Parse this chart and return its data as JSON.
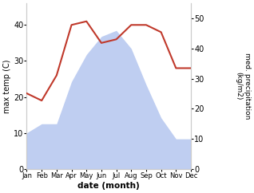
{
  "months": [
    "Jan",
    "Feb",
    "Mar",
    "Apr",
    "May",
    "Jun",
    "Jul",
    "Aug",
    "Sep",
    "Oct",
    "Nov",
    "Dec"
  ],
  "month_x": [
    1,
    2,
    3,
    4,
    5,
    6,
    7,
    8,
    9,
    10,
    11,
    12
  ],
  "precipitation": [
    12,
    15,
    15,
    29,
    38,
    44,
    46,
    40,
    28,
    17,
    10,
    10
  ],
  "temperature": [
    21,
    19,
    26,
    40,
    41,
    35,
    36,
    40,
    40,
    38,
    28,
    28
  ],
  "temp_color": "#c0392b",
  "precip_color": "#b8c9f0",
  "ylabel_left": "max temp (C)",
  "ylabel_right": "med. precipitation\n(kg/m2)",
  "xlabel": "date (month)",
  "ylim_left": [
    0,
    46
  ],
  "ylim_right": [
    0,
    55
  ],
  "yticks_left": [
    0,
    10,
    20,
    30,
    40
  ],
  "yticks_right": [
    0,
    10,
    20,
    30,
    40,
    50
  ],
  "background_color": "#ffffff"
}
